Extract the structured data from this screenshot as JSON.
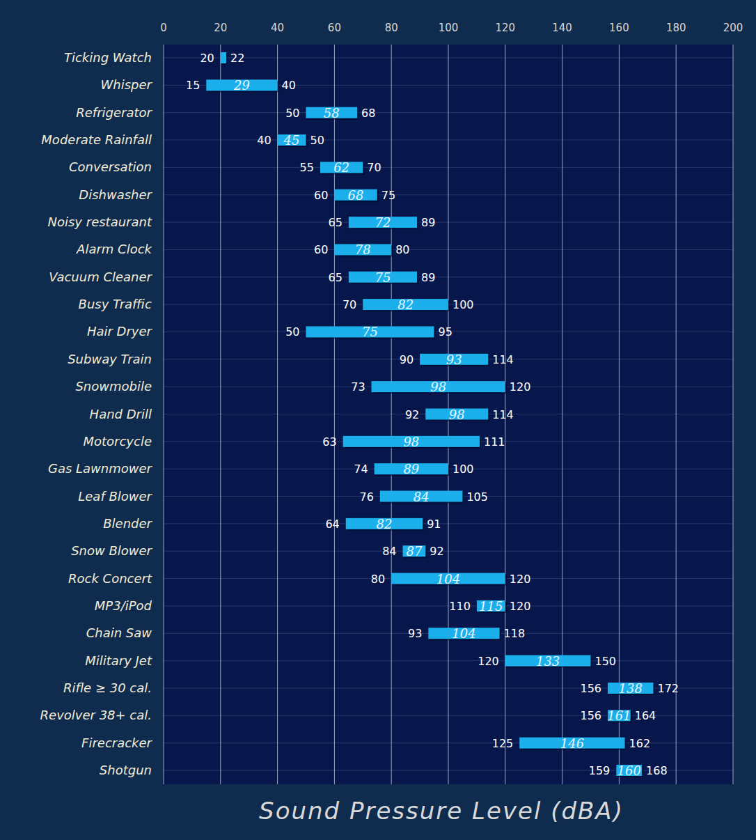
{
  "chart_data": {
    "type": "range_bar",
    "orientation": "horizontal",
    "x_label": "Sound Pressure Level (dBA)",
    "categories": [
      "Ticking Watch",
      "Whisper",
      "Refrigerator",
      "Moderate Rainfall",
      "Conversation",
      "Dishwasher",
      "Noisy restaurant",
      "Alarm Clock",
      "Vacuum Cleaner",
      "Busy Traffic",
      "Hair Dryer",
      "Subway Train",
      "Snowmobile",
      "Hand Drill",
      "Motorcycle",
      "Gas Lawnmower",
      "Leaf Blower",
      "Blender",
      "Snow Blower",
      "Rock Concert",
      "MP3/iPod",
      "Chain Saw",
      "Military Jet",
      "Rifle ≥ 30 cal.",
      "Revolver 38+ cal.",
      "Firecracker",
      "Shotgun"
    ],
    "low": [
      20,
      15,
      50,
      40,
      55,
      60,
      65,
      60,
      65,
      70,
      50,
      90,
      73,
      92,
      63,
      74,
      76,
      64,
      84,
      80,
      110,
      93,
      120,
      156,
      156,
      125,
      159
    ],
    "typical": [
      null,
      29,
      58,
      45,
      62,
      68,
      72,
      78,
      75,
      82,
      75,
      93,
      98,
      98,
      98,
      89,
      84,
      82,
      87,
      104,
      115,
      104,
      133,
      138,
      161,
      146,
      160
    ],
    "high": [
      22,
      40,
      68,
      50,
      70,
      75,
      89,
      80,
      89,
      100,
      95,
      114,
      120,
      114,
      111,
      100,
      105,
      91,
      92,
      120,
      120,
      118,
      150,
      172,
      164,
      162,
      168
    ],
    "color": "#1bb0ec",
    "xlim": [
      0,
      200
    ],
    "xticks": [
      0,
      20,
      40,
      60,
      80,
      100,
      120,
      140,
      160,
      180,
      200
    ],
    "grid": true,
    "data_labels": true
  }
}
